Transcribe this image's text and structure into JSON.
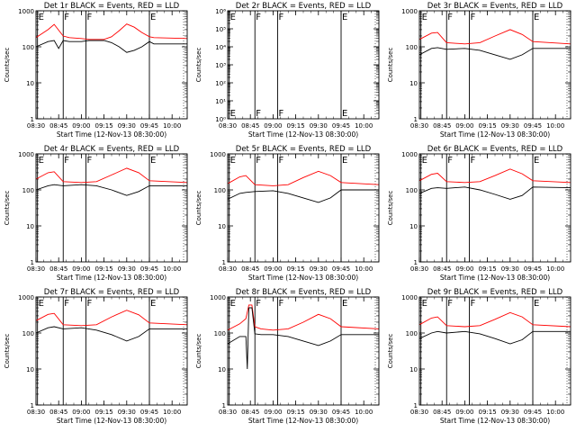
{
  "chart_data": [
    {
      "type": "line",
      "title": "Det 1r BLACK = Events, RED = LLD",
      "xlabel": "Start Time (12-Nov-13 08:30:00)",
      "ylabel": "Counts/sec",
      "log_y": true,
      "ylim": [
        1,
        1000
      ],
      "yticks": [
        "1",
        "10",
        "100",
        "1000"
      ],
      "xlim": [
        "08:30",
        "10:10"
      ],
      "xticks": [
        "08:30",
        "08:45",
        "09:00",
        "09:15",
        "09:30",
        "09:45",
        "10:00"
      ],
      "markers": [
        {
          "label": "E",
          "t": "08:31"
        },
        {
          "label": "F",
          "t": "08:48"
        },
        {
          "label": "F",
          "t": "09:03"
        },
        {
          "label": "E",
          "t": "09:45"
        }
      ],
      "series": [
        {
          "color": "#ff0000",
          "x": [
            "08:30",
            "08:38",
            "08:42",
            "08:48",
            "08:52",
            "09:00",
            "09:05",
            "09:15",
            "09:20",
            "09:25",
            "09:30",
            "09:35",
            "09:40",
            "09:45",
            "09:48",
            "10:10"
          ],
          "values": [
            180,
            300,
            420,
            200,
            180,
            170,
            160,
            160,
            190,
            280,
            430,
            350,
            250,
            190,
            180,
            170
          ]
        },
        {
          "color": "#000000",
          "x": [
            "08:30",
            "08:38",
            "08:42",
            "08:45",
            "08:48",
            "08:52",
            "09:00",
            "09:05",
            "09:15",
            "09:20",
            "09:25",
            "09:30",
            "09:35",
            "09:40",
            "09:45",
            "09:48",
            "10:10"
          ],
          "values": [
            100,
            140,
            150,
            90,
            150,
            140,
            140,
            150,
            150,
            130,
            100,
            70,
            80,
            100,
            140,
            120,
            120
          ]
        }
      ]
    },
    {
      "type": "line",
      "title": "Det 2r BLACK = Events, RED = LLD",
      "xlabel": "Start Time (12-Nov-13 08:30:00)",
      "ylabel": "Counts/sec",
      "log_y": true,
      "ylim": [
        1,
        1000000
      ],
      "yticks": [
        "10⁰",
        "10¹",
        "10²",
        "10³",
        "10⁴",
        "10⁵",
        "10⁶"
      ],
      "xlim": [
        "08:30",
        "10:10"
      ],
      "xticks": [
        "08:30",
        "08:45",
        "09:00",
        "09:15",
        "09:30",
        "09:45",
        "10:00"
      ],
      "markers": [
        {
          "label": "E",
          "t": "08:31"
        },
        {
          "label": "F",
          "t": "08:48"
        },
        {
          "label": "F",
          "t": "09:03"
        },
        {
          "label": "E",
          "t": "09:45"
        }
      ],
      "series": []
    },
    {
      "type": "line",
      "title": "Det 3r BLACK = Events, RED = LLD",
      "xlabel": "Start Time (12-Nov-13 08:30:00)",
      "ylabel": "Counts/sec",
      "log_y": true,
      "ylim": [
        1,
        1000
      ],
      "yticks": [
        "1",
        "10",
        "100",
        "1000"
      ],
      "xlim": [
        "08:30",
        "10:10"
      ],
      "xticks": [
        "08:30",
        "08:45",
        "09:00",
        "09:15",
        "09:30",
        "09:45",
        "10:00"
      ],
      "markers": [
        {
          "label": "E",
          "t": "08:31"
        },
        {
          "label": "F",
          "t": "08:48"
        },
        {
          "label": "F",
          "t": "09:03"
        },
        {
          "label": "E",
          "t": "09:45"
        }
      ],
      "series": [
        {
          "color": "#ff0000",
          "x": [
            "08:30",
            "08:38",
            "08:42",
            "08:48",
            "09:00",
            "09:10",
            "09:20",
            "09:30",
            "09:38",
            "09:45",
            "10:10"
          ],
          "values": [
            160,
            240,
            250,
            130,
            120,
            130,
            200,
            300,
            220,
            140,
            120
          ]
        },
        {
          "color": "#000000",
          "x": [
            "08:30",
            "08:38",
            "08:42",
            "08:48",
            "09:00",
            "09:10",
            "09:20",
            "09:30",
            "09:38",
            "09:45",
            "10:10"
          ],
          "values": [
            60,
            90,
            95,
            85,
            90,
            80,
            60,
            45,
            60,
            90,
            90
          ]
        }
      ]
    },
    {
      "type": "line",
      "title": "Det 4r BLACK = Events, RED = LLD",
      "xlabel": "Start Time (12-Nov-13 08:30:00)",
      "ylabel": "Counts/sec",
      "log_y": true,
      "ylim": [
        1,
        1000
      ],
      "yticks": [
        "1",
        "10",
        "100",
        "1000"
      ],
      "xlim": [
        "08:30",
        "10:10"
      ],
      "xticks": [
        "08:30",
        "08:45",
        "09:00",
        "09:15",
        "09:30",
        "09:45",
        "10:00"
      ],
      "markers": [
        {
          "label": "E",
          "t": "08:31"
        },
        {
          "label": "F",
          "t": "08:48"
        },
        {
          "label": "F",
          "t": "09:03"
        },
        {
          "label": "E",
          "t": "09:45"
        }
      ],
      "series": [
        {
          "color": "#ff0000",
          "x": [
            "08:30",
            "08:38",
            "08:42",
            "08:48",
            "09:00",
            "09:10",
            "09:20",
            "09:30",
            "09:38",
            "09:45",
            "10:10"
          ],
          "values": [
            200,
            300,
            320,
            170,
            160,
            170,
            260,
            400,
            300,
            180,
            160
          ]
        },
        {
          "color": "#000000",
          "x": [
            "08:30",
            "08:38",
            "08:42",
            "08:48",
            "09:00",
            "09:10",
            "09:20",
            "09:30",
            "09:38",
            "09:45",
            "10:10"
          ],
          "values": [
            100,
            130,
            140,
            130,
            140,
            130,
            100,
            70,
            90,
            130,
            130
          ]
        }
      ]
    },
    {
      "type": "line",
      "title": "Det 5r BLACK = Events, RED = LLD",
      "xlabel": "Start Time (12-Nov-13 08:30:00)",
      "ylabel": "Counts/sec",
      "log_y": true,
      "ylim": [
        1,
        1000
      ],
      "yticks": [
        "1",
        "10",
        "100",
        "1000"
      ],
      "xlim": [
        "08:30",
        "10:10"
      ],
      "xticks": [
        "08:30",
        "08:45",
        "09:00",
        "09:15",
        "09:30",
        "09:45",
        "10:00"
      ],
      "markers": [
        {
          "label": "E",
          "t": "08:31"
        },
        {
          "label": "F",
          "t": "08:48"
        },
        {
          "label": "F",
          "t": "09:03"
        },
        {
          "label": "E",
          "t": "09:45"
        }
      ],
      "series": [
        {
          "color": "#ff0000",
          "x": [
            "08:30",
            "08:38",
            "08:42",
            "08:48",
            "09:00",
            "09:10",
            "09:20",
            "09:30",
            "09:38",
            "09:45",
            "10:10"
          ],
          "values": [
            150,
            230,
            250,
            140,
            130,
            140,
            220,
            330,
            250,
            160,
            140
          ]
        },
        {
          "color": "#000000",
          "x": [
            "08:30",
            "08:38",
            "08:42",
            "08:48",
            "09:00",
            "09:10",
            "09:20",
            "09:30",
            "09:38",
            "09:45",
            "10:10"
          ],
          "values": [
            55,
            80,
            85,
            90,
            95,
            80,
            60,
            45,
            60,
            100,
            100
          ]
        }
      ]
    },
    {
      "type": "line",
      "title": "Det 6r BLACK = Events, RED = LLD",
      "xlabel": "Start Time (12-Nov-13 08:30:00)",
      "ylabel": "Counts/sec",
      "log_y": true,
      "ylim": [
        1,
        1000
      ],
      "yticks": [
        "1",
        "10",
        "100",
        "1000"
      ],
      "xlim": [
        "08:30",
        "10:10"
      ],
      "xticks": [
        "08:30",
        "08:45",
        "09:00",
        "09:15",
        "09:30",
        "09:45",
        "10:00"
      ],
      "markers": [
        {
          "label": "E",
          "t": "08:31"
        },
        {
          "label": "F",
          "t": "08:48"
        },
        {
          "label": "F",
          "t": "09:03"
        },
        {
          "label": "E",
          "t": "09:45"
        }
      ],
      "series": [
        {
          "color": "#ff0000",
          "x": [
            "08:30",
            "08:38",
            "08:42",
            "08:48",
            "09:00",
            "09:10",
            "09:20",
            "09:30",
            "09:38",
            "09:45",
            "10:10"
          ],
          "values": [
            180,
            270,
            290,
            170,
            160,
            170,
            250,
            380,
            280,
            180,
            160
          ]
        },
        {
          "color": "#000000",
          "x": [
            "08:30",
            "08:38",
            "08:42",
            "08:48",
            "09:00",
            "09:10",
            "09:20",
            "09:30",
            "09:38",
            "09:45",
            "10:10"
          ],
          "values": [
            80,
            110,
            115,
            110,
            120,
            100,
            75,
            55,
            70,
            120,
            115
          ]
        }
      ]
    },
    {
      "type": "line",
      "title": "Det 7r BLACK = Events, RED = LLD",
      "xlabel": "Start Time (12-Nov-13 08:30:00)",
      "ylabel": "Counts/sec",
      "log_y": true,
      "ylim": [
        1,
        1000
      ],
      "yticks": [
        "1",
        "10",
        "100",
        "1000"
      ],
      "xlim": [
        "08:30",
        "10:10"
      ],
      "xticks": [
        "08:30",
        "08:45",
        "09:00",
        "09:15",
        "09:30",
        "09:45",
        "10:00"
      ],
      "markers": [
        {
          "label": "E",
          "t": "08:31"
        },
        {
          "label": "F",
          "t": "08:48"
        },
        {
          "label": "F",
          "t": "09:03"
        },
        {
          "label": "E",
          "t": "09:45"
        }
      ],
      "series": [
        {
          "color": "#ff0000",
          "x": [
            "08:30",
            "08:38",
            "08:42",
            "08:48",
            "09:00",
            "09:10",
            "09:20",
            "09:30",
            "09:38",
            "09:45",
            "10:10"
          ],
          "values": [
            220,
            330,
            350,
            170,
            160,
            170,
            280,
            430,
            320,
            190,
            170
          ]
        },
        {
          "color": "#000000",
          "x": [
            "08:30",
            "08:38",
            "08:42",
            "08:48",
            "09:00",
            "09:10",
            "09:20",
            "09:30",
            "09:38",
            "09:45",
            "10:10"
          ],
          "values": [
            100,
            140,
            150,
            130,
            140,
            120,
            90,
            60,
            80,
            130,
            130
          ]
        }
      ]
    },
    {
      "type": "line",
      "title": "Det 8r BLACK = Events, RED = LLD",
      "xlabel": "Start Time (12-Nov-13 08:30:00)",
      "ylabel": "Counts/sec",
      "log_y": true,
      "ylim": [
        1,
        1000
      ],
      "yticks": [
        "1",
        "10",
        "100",
        "1000"
      ],
      "xlim": [
        "08:30",
        "10:10"
      ],
      "xticks": [
        "08:30",
        "08:45",
        "09:00",
        "09:15",
        "09:30",
        "09:45",
        "10:00"
      ],
      "markers": [
        {
          "label": "E",
          "t": "08:31"
        },
        {
          "label": "F",
          "t": "08:48"
        },
        {
          "label": "F",
          "t": "09:03"
        },
        {
          "label": "E",
          "t": "09:45"
        }
      ],
      "series": [
        {
          "color": "#ff0000",
          "x": [
            "08:30",
            "08:38",
            "08:42",
            "08:44",
            "08:46",
            "08:48",
            "08:52",
            "09:00",
            "09:10",
            "09:20",
            "09:30",
            "09:38",
            "09:45",
            "10:10"
          ],
          "values": [
            120,
            180,
            250,
            600,
            600,
            150,
            130,
            120,
            130,
            200,
            330,
            250,
            150,
            130
          ]
        },
        {
          "color": "#000000",
          "x": [
            "08:30",
            "08:38",
            "08:42",
            "08:43",
            "08:44",
            "08:46",
            "08:48",
            "08:52",
            "09:00",
            "09:10",
            "09:20",
            "09:30",
            "09:38",
            "09:45",
            "10:10"
          ],
          "values": [
            50,
            80,
            80,
            10,
            500,
            500,
            95,
            90,
            90,
            80,
            60,
            45,
            60,
            90,
            90
          ]
        }
      ]
    },
    {
      "type": "line",
      "title": "Det 9r BLACK = Events, RED = LLD",
      "xlabel": "Start Time (12-Nov-13 08:30:00)",
      "ylabel": "Counts/sec",
      "log_y": true,
      "ylim": [
        1,
        1000
      ],
      "yticks": [
        "1",
        "10",
        "100",
        "1000"
      ],
      "xlim": [
        "08:30",
        "10:10"
      ],
      "xticks": [
        "08:30",
        "08:45",
        "09:00",
        "09:15",
        "09:30",
        "09:45",
        "10:00"
      ],
      "markers": [
        {
          "label": "E",
          "t": "08:31"
        },
        {
          "label": "F",
          "t": "08:48"
        },
        {
          "label": "F",
          "t": "09:03"
        },
        {
          "label": "E",
          "t": "09:45"
        }
      ],
      "series": [
        {
          "color": "#ff0000",
          "x": [
            "08:30",
            "08:38",
            "08:42",
            "08:48",
            "09:00",
            "09:10",
            "09:20",
            "09:30",
            "09:38",
            "09:45",
            "10:10"
          ],
          "values": [
            170,
            260,
            280,
            160,
            150,
            160,
            240,
            370,
            280,
            170,
            150
          ]
        },
        {
          "color": "#000000",
          "x": [
            "08:30",
            "08:38",
            "08:42",
            "08:48",
            "09:00",
            "09:10",
            "09:20",
            "09:30",
            "09:38",
            "09:45",
            "10:10"
          ],
          "values": [
            70,
            100,
            110,
            100,
            110,
            95,
            70,
            50,
            65,
            110,
            110
          ]
        }
      ]
    }
  ]
}
